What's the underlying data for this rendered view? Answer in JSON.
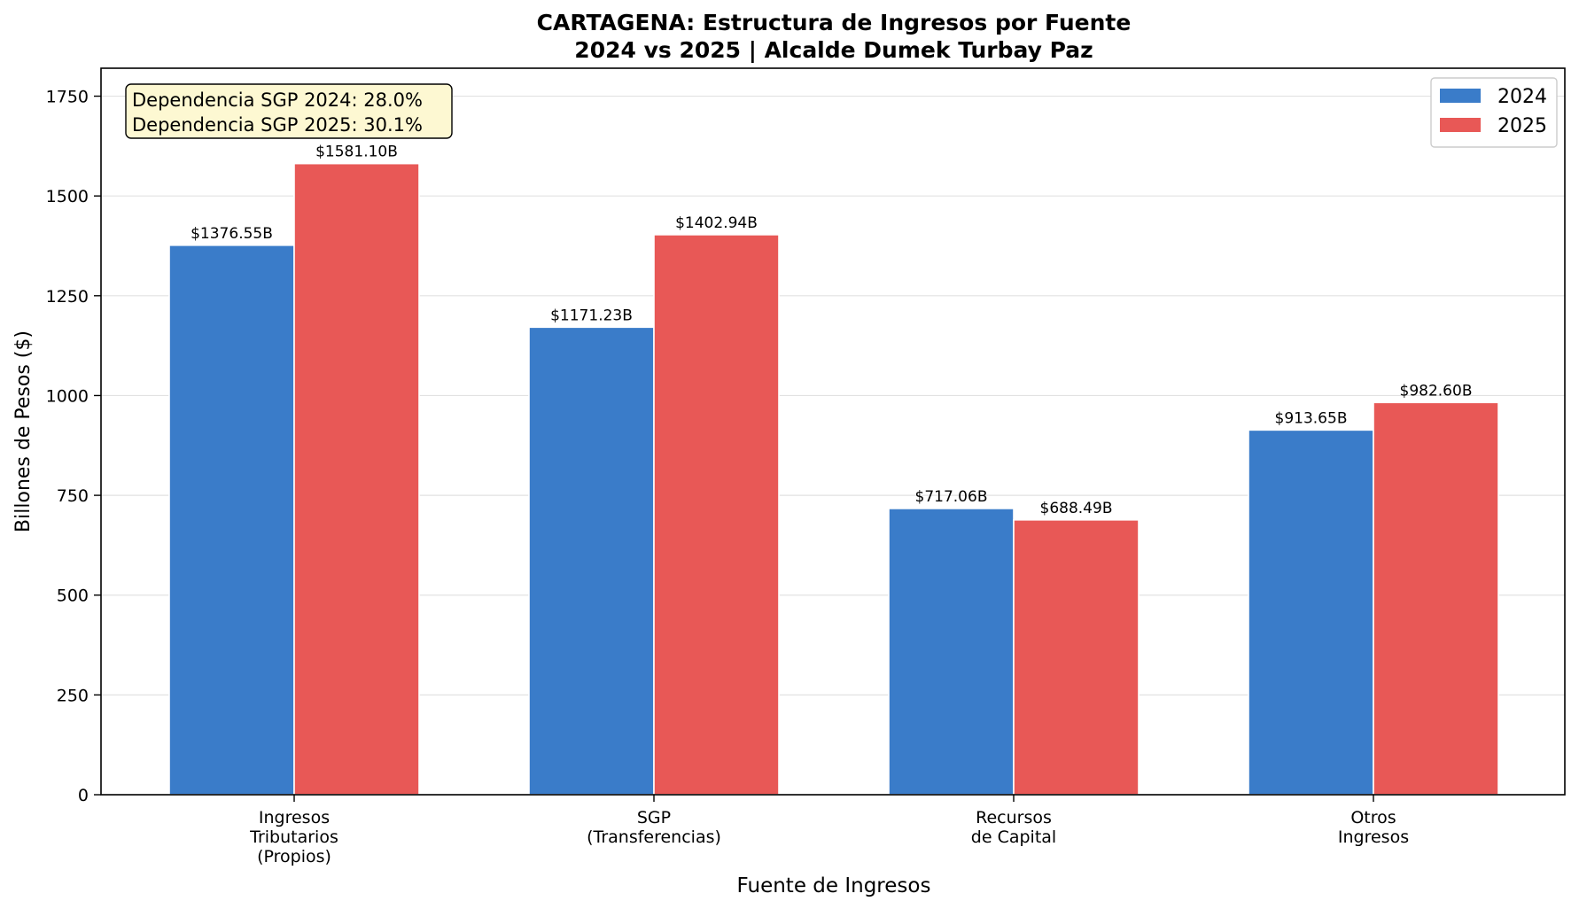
{
  "chart_data": {
    "type": "bar",
    "title_line1": "CARTAGENA: Estructura de Ingresos por Fuente",
    "title_line2": "2024 vs 2025 | Alcalde Dumek Turbay Paz",
    "xlabel": "Fuente de Ingresos",
    "ylabel": "Billones de Pesos ($)",
    "ylim": [
      0,
      1820
    ],
    "yticks": [
      0,
      250,
      500,
      750,
      1000,
      1250,
      1500,
      1750
    ],
    "grid": "horizontal",
    "legend_position": "top-right",
    "categories": [
      [
        "Ingresos",
        "Tributarios",
        "(Propios)"
      ],
      [
        "SGP",
        "(Transferencias)"
      ],
      [
        "Recursos",
        "de Capital"
      ],
      [
        "Otros",
        "Ingresos"
      ]
    ],
    "series": [
      {
        "name": "2024",
        "color": "#3a7cc9",
        "values": [
          1376.55,
          1171.23,
          717.06,
          913.65
        ],
        "labels": [
          "$1376.55B",
          "$1171.23B",
          "$717.06B",
          "$913.65B"
        ]
      },
      {
        "name": "2025",
        "color": "#e85856",
        "values": [
          1581.1,
          1402.94,
          688.49,
          982.6
        ],
        "labels": [
          "$1581.10B",
          "$1402.94B",
          "$688.49B",
          "$982.60B"
        ]
      }
    ],
    "annotation": {
      "lines": [
        "Dependencia SGP 2024: 28.0%",
        "Dependencia SGP 2025: 30.1%"
      ],
      "background": "#fdf8d2"
    }
  }
}
